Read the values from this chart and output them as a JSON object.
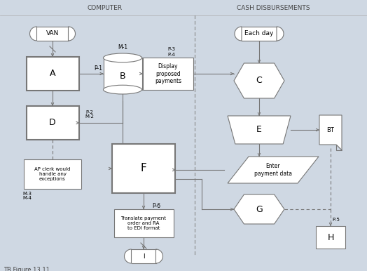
{
  "bg_color": "#cfd8e3",
  "title_computer": "COMPUTER",
  "title_cash": "CASH DISBURSEMENTS",
  "footer": "TB Figure 13.11",
  "fig_width": 5.24,
  "fig_height": 3.86,
  "dpi": 100,
  "stroke": "#777777",
  "dark_stroke": "#555555"
}
